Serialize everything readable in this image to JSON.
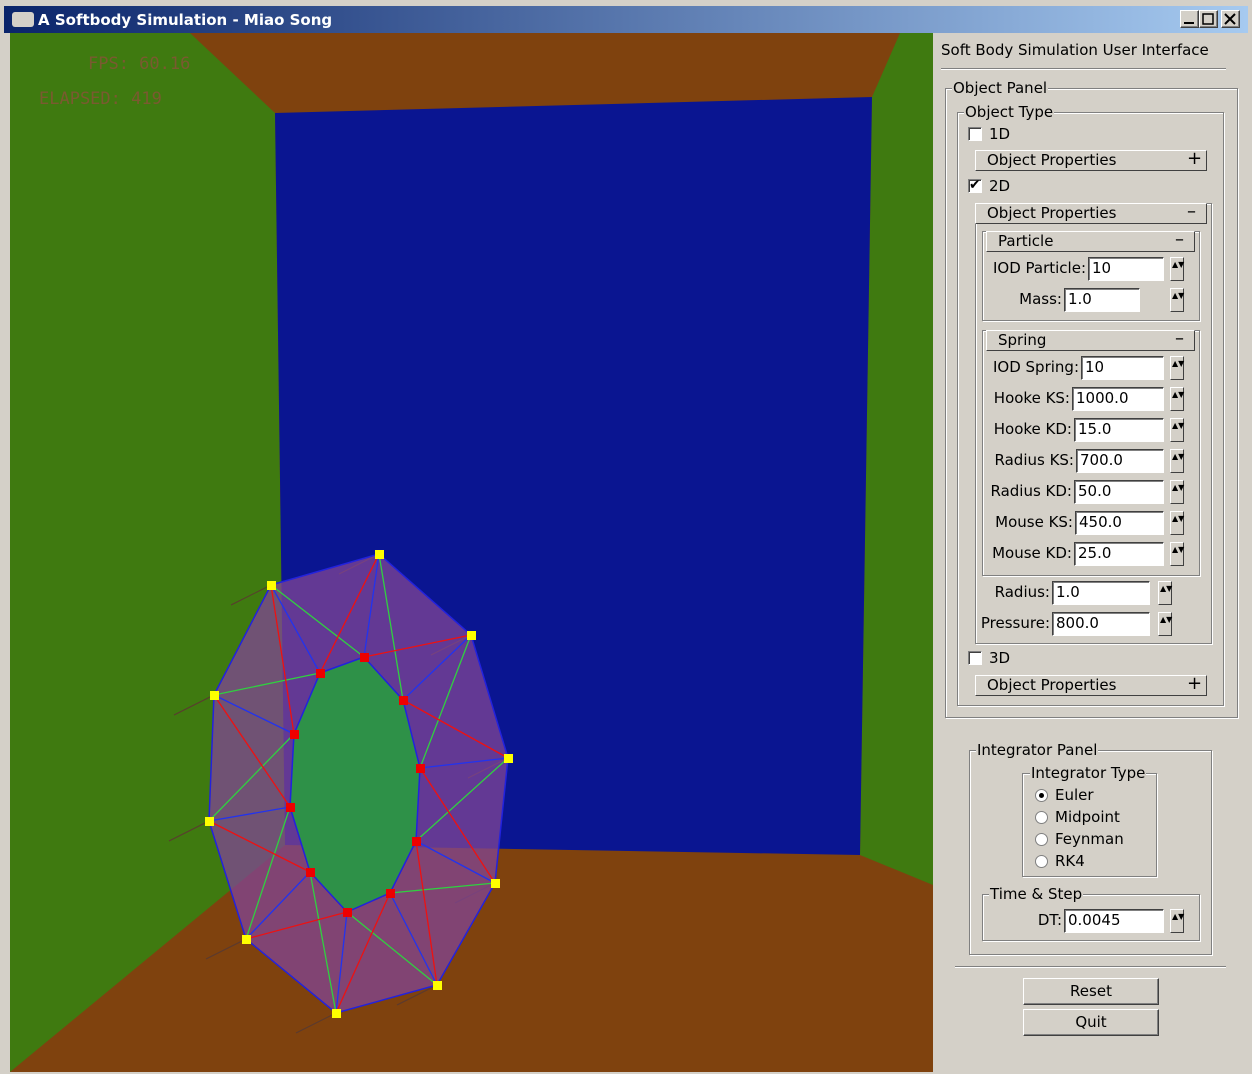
{
  "window": {
    "title": "A Softbody Simulation - Miao Song"
  },
  "viewport": {
    "fps": "FPS: 60.16",
    "elapsed": "ELAPSED: 419"
  },
  "panel": {
    "title": "Soft Body Simulation User Interface",
    "object_panel": {
      "label": "Object Panel",
      "object_type": {
        "label": "Object Type",
        "options": [
          {
            "label": "1D",
            "checked": false,
            "properties": "Object Properties"
          },
          {
            "label": "2D",
            "checked": true,
            "properties": "Object Properties"
          },
          {
            "label": "3D",
            "checked": false,
            "properties": "Object Properties"
          }
        ]
      },
      "particle": {
        "label": "Particle",
        "fields": [
          {
            "label": "IOD Particle:",
            "value": "10"
          },
          {
            "label": "Mass:",
            "value": "1.0"
          }
        ]
      },
      "spring": {
        "label": "Spring",
        "fields": [
          {
            "label": "IOD Spring:",
            "value": "10"
          },
          {
            "label": "Hooke KS:",
            "value": "1000.0"
          },
          {
            "label": "Hooke KD:",
            "value": "15.0"
          },
          {
            "label": "Radius KS:",
            "value": "700.0"
          },
          {
            "label": "Radius KD:",
            "value": "50.0"
          },
          {
            "label": "Mouse KS:",
            "value": "450.0"
          },
          {
            "label": "Mouse KD:",
            "value": "25.0"
          }
        ]
      },
      "fields": [
        {
          "label": "Radius:",
          "value": "1.0"
        },
        {
          "label": "Pressure:",
          "value": "800.0"
        }
      ]
    },
    "integrator_panel": {
      "label": "Integrator Panel",
      "integrator_type": {
        "label": "Integrator Type",
        "options": [
          "Euler",
          "Midpoint",
          "Feynman",
          "RK4"
        ],
        "selected": "Euler"
      },
      "time_step": {
        "label": "Time & Step",
        "fields": [
          {
            "label": "DT:",
            "value": "0.0045"
          }
        ]
      }
    },
    "buttons": [
      "Reset",
      "Quit"
    ]
  }
}
